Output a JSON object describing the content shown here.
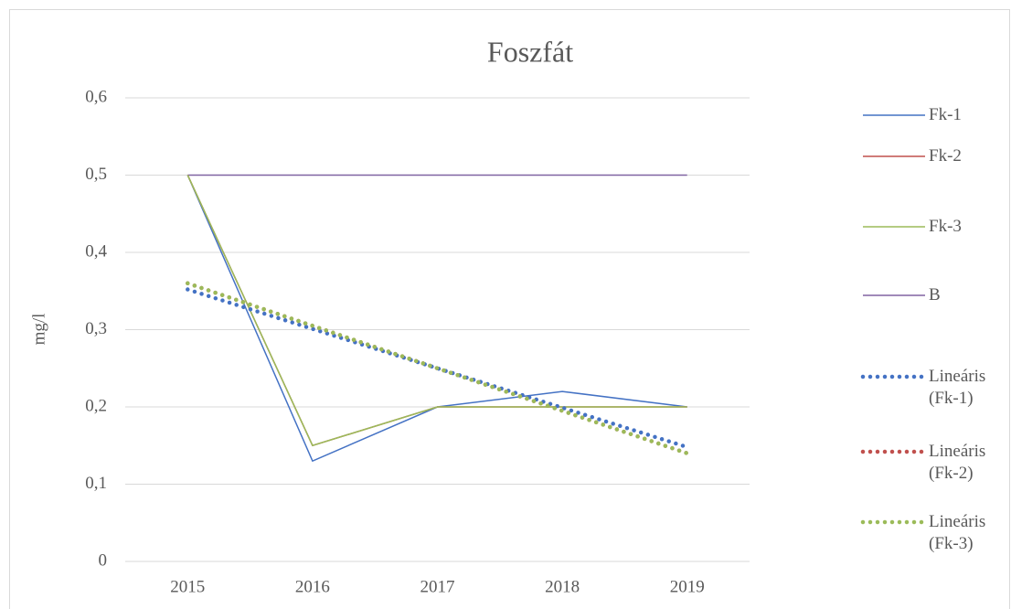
{
  "chart_data": {
    "type": "line",
    "title": "Foszfát",
    "y_label": "mg/l",
    "categories": [
      "2015",
      "2016",
      "2017",
      "2018",
      "2019"
    ],
    "series": [
      {
        "name": "Fk-1",
        "color": "#4472c4",
        "style": "solid",
        "values": [
          0.5,
          0.13,
          0.2,
          0.22,
          0.2
        ]
      },
      {
        "name": "Fk-2",
        "color": "#c0504d",
        "style": "solid",
        "values": [
          0.5,
          0.15,
          0.2,
          0.2,
          0.2
        ]
      },
      {
        "name": "Fk-3",
        "color": "#9bbb59",
        "style": "solid",
        "values": [
          0.5,
          0.15,
          0.2,
          0.2,
          0.2
        ]
      },
      {
        "name": "B",
        "color": "#8064a2",
        "style": "solid",
        "values": [
          0.5,
          0.5,
          0.5,
          0.5,
          0.5
        ]
      },
      {
        "name": "Lineáris (Fk-1)",
        "color": "#4472c4",
        "style": "dotted",
        "values": [
          0.352,
          0.301,
          0.25,
          0.199,
          0.148
        ]
      },
      {
        "name": "Lineáris (Fk-2)",
        "color": "#c0504d",
        "style": "dotted",
        "values": [
          0.36,
          0.305,
          0.25,
          0.195,
          0.14
        ]
      },
      {
        "name": "Lineáris (Fk-3)",
        "color": "#9bbb59",
        "style": "dotted",
        "values": [
          0.36,
          0.305,
          0.25,
          0.195,
          0.14
        ]
      }
    ],
    "ylim": [
      0,
      0.6
    ],
    "yticks": [
      0,
      {
        "value": 0.1,
        "label": "0,1"
      },
      {
        "value": 0.2,
        "label": "0,2"
      },
      {
        "value": 0.3,
        "label": "0,3"
      },
      {
        "value": 0.4,
        "label": "0,4"
      },
      {
        "value": 0.5,
        "label": "0,5"
      },
      {
        "value": 0.6,
        "label": "0,6"
      }
    ],
    "grid": true,
    "legend": "right"
  }
}
